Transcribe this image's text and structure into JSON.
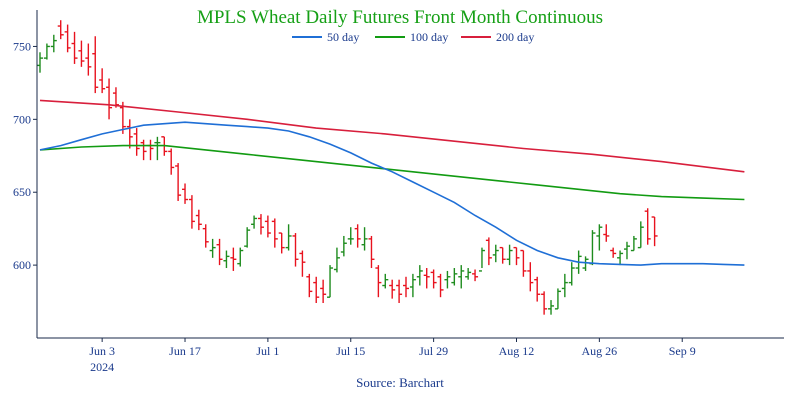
{
  "chart_data": {
    "type": "line",
    "title": "MPLS Wheat Daily Futures Front Month Continuous",
    "source": "Source: Barchart",
    "colors": {
      "title": "#16a016",
      "axis": "#1a2a4a",
      "tick_text": "#1a3a8c",
      "up": "#1e8c1e",
      "down": "#e8121e",
      "ma50": "#1f6fd6",
      "ma100": "#129b12",
      "ma200": "#d81f3c"
    },
    "ylim": [
      550,
      775
    ],
    "y_ticks": [
      {
        "value": 600,
        "label": "600"
      },
      {
        "value": 650,
        "label": "650"
      },
      {
        "value": 700,
        "label": "700"
      },
      {
        "value": 750,
        "label": "750"
      }
    ],
    "x_range": [
      0,
      106
    ],
    "x_ticks": [
      {
        "x": 9,
        "label": "Jun 3",
        "sublabel": "2024"
      },
      {
        "x": 21,
        "label": "Jun 17",
        "sublabel": ""
      },
      {
        "x": 33,
        "label": "Jul 1",
        "sublabel": ""
      },
      {
        "x": 45,
        "label": "Jul 15",
        "sublabel": ""
      },
      {
        "x": 57,
        "label": "Jul 29",
        "sublabel": ""
      },
      {
        "x": 69,
        "label": "Aug 12",
        "sublabel": ""
      },
      {
        "x": 81,
        "label": "Aug 26",
        "sublabel": ""
      },
      {
        "x": 93,
        "label": "Sep 9",
        "sublabel": ""
      }
    ],
    "legend": [
      {
        "name": "50 day",
        "key": "ma50"
      },
      {
        "name": "100 day",
        "key": "ma100"
      },
      {
        "name": "200 day",
        "key": "ma200"
      }
    ],
    "ohlc": [
      [
        737,
        746,
        732,
        742
      ],
      [
        742,
        752,
        741,
        750
      ],
      [
        750,
        758,
        746,
        754
      ],
      [
        764,
        768,
        755,
        758
      ],
      [
        760,
        765,
        746,
        749
      ],
      [
        752,
        760,
        738,
        742
      ],
      [
        747,
        754,
        736,
        740
      ],
      [
        742,
        752,
        730,
        736
      ],
      [
        745,
        757,
        718,
        722
      ],
      [
        727,
        735,
        718,
        721
      ],
      [
        722,
        728,
        700,
        708
      ],
      [
        718,
        722,
        708,
        710
      ],
      [
        708,
        712,
        690,
        695
      ],
      [
        695,
        700,
        680,
        688
      ],
      [
        690,
        694,
        675,
        680
      ],
      [
        684,
        686,
        672,
        678
      ],
      [
        682,
        686,
        672,
        680
      ],
      [
        684,
        688,
        672,
        684
      ],
      [
        688,
        688,
        675,
        678
      ],
      [
        678,
        680,
        662,
        667
      ],
      [
        668,
        670,
        644,
        648
      ],
      [
        652,
        656,
        642,
        645
      ],
      [
        645,
        648,
        625,
        630
      ],
      [
        634,
        638,
        624,
        628
      ],
      [
        625,
        628,
        612,
        616
      ],
      [
        610,
        618,
        605,
        612
      ],
      [
        614,
        618,
        600,
        604
      ],
      [
        603,
        610,
        598,
        606
      ],
      [
        605,
        612,
        596,
        604
      ],
      [
        601,
        612,
        599,
        610
      ],
      [
        613,
        626,
        612,
        624
      ],
      [
        628,
        634,
        625,
        632
      ],
      [
        632,
        635,
        621,
        626
      ],
      [
        630,
        634,
        619,
        622
      ],
      [
        630,
        632,
        612,
        618
      ],
      [
        622,
        622,
        608,
        612
      ],
      [
        612,
        628,
        610,
        620
      ],
      [
        620,
        622,
        599,
        604
      ],
      [
        608,
        610,
        592,
        602
      ],
      [
        592,
        594,
        578,
        582
      ],
      [
        588,
        592,
        574,
        578
      ],
      [
        584,
        590,
        574,
        580
      ],
      [
        578,
        600,
        578,
        598
      ],
      [
        597,
        612,
        595,
        605
      ],
      [
        609,
        620,
        606,
        615
      ],
      [
        618,
        626,
        614,
        618
      ],
      [
        625,
        628,
        612,
        618
      ],
      [
        614,
        626,
        610,
        618
      ],
      [
        618,
        620,
        598,
        604
      ],
      [
        598,
        600,
        578,
        588
      ],
      [
        586,
        594,
        584,
        590
      ],
      [
        586,
        590,
        577,
        583
      ],
      [
        586,
        590,
        574,
        580
      ],
      [
        586,
        592,
        578,
        584
      ],
      [
        585,
        594,
        578,
        590
      ],
      [
        592,
        600,
        586,
        596
      ],
      [
        593,
        598,
        584,
        592
      ],
      [
        595,
        597,
        584,
        588
      ],
      [
        592,
        594,
        578,
        583
      ],
      [
        590,
        596,
        584,
        592
      ],
      [
        588,
        598,
        586,
        594
      ],
      [
        592,
        600,
        584,
        596
      ],
      [
        592,
        598,
        590,
        595
      ],
      [
        594,
        597,
        589,
        592
      ],
      [
        596,
        612,
        598,
        610
      ],
      [
        617,
        619,
        600,
        605
      ],
      [
        607,
        614,
        602,
        610
      ],
      [
        612,
        612,
        601,
        604
      ],
      [
        604,
        614,
        600,
        610
      ],
      [
        612,
        612,
        600,
        605
      ],
      [
        610,
        610,
        592,
        596
      ],
      [
        596,
        602,
        582,
        588
      ],
      [
        590,
        592,
        575,
        580
      ],
      [
        580,
        582,
        566,
        570
      ],
      [
        570,
        576,
        566,
        572
      ],
      [
        570,
        584,
        570,
        582
      ],
      [
        584,
        594,
        578,
        588
      ],
      [
        588,
        602,
        586,
        598
      ],
      [
        598,
        610,
        594,
        606
      ],
      [
        598,
        606,
        596,
        604
      ],
      [
        601,
        624,
        600,
        622
      ],
      [
        620,
        628,
        610,
        626
      ],
      [
        621,
        628,
        616,
        620
      ],
      [
        610,
        612,
        605,
        608
      ],
      [
        605,
        610,
        600,
        608
      ],
      [
        611,
        616,
        604,
        613
      ],
      [
        610,
        620,
        610,
        618
      ],
      [
        612,
        630,
        612,
        626
      ],
      [
        637,
        639,
        614,
        618
      ],
      [
        633,
        633,
        613,
        620
      ]
    ],
    "ma50": [
      [
        0,
        679
      ],
      [
        3,
        682
      ],
      [
        6,
        686
      ],
      [
        9,
        690
      ],
      [
        12,
        693
      ],
      [
        15,
        696
      ],
      [
        18,
        697
      ],
      [
        21,
        698
      ],
      [
        24,
        697
      ],
      [
        27,
        696
      ],
      [
        30,
        695
      ],
      [
        33,
        694
      ],
      [
        36,
        692
      ],
      [
        39,
        688
      ],
      [
        42,
        683
      ],
      [
        45,
        677
      ],
      [
        48,
        670
      ],
      [
        51,
        664
      ],
      [
        54,
        657
      ],
      [
        57,
        650
      ],
      [
        60,
        643
      ],
      [
        63,
        634
      ],
      [
        66,
        626
      ],
      [
        69,
        617
      ],
      [
        72,
        610
      ],
      [
        75,
        605
      ],
      [
        78,
        602
      ],
      [
        81,
        601
      ],
      [
        84,
        600.5
      ],
      [
        87,
        600
      ],
      [
        90,
        601
      ],
      [
        93,
        601
      ],
      [
        96,
        601
      ],
      [
        99,
        600.5
      ],
      [
        102,
        600
      ]
    ],
    "ma100": [
      [
        0,
        679
      ],
      [
        6,
        681
      ],
      [
        12,
        682
      ],
      [
        18,
        682
      ],
      [
        24,
        679
      ],
      [
        30,
        676
      ],
      [
        36,
        673
      ],
      [
        42,
        670
      ],
      [
        48,
        667
      ],
      [
        54,
        664
      ],
      [
        60,
        661
      ],
      [
        66,
        658
      ],
      [
        72,
        655
      ],
      [
        78,
        652
      ],
      [
        84,
        649
      ],
      [
        90,
        647
      ],
      [
        96,
        646
      ],
      [
        102,
        645
      ]
    ],
    "ma200": [
      [
        0,
        713
      ],
      [
        10,
        710
      ],
      [
        20,
        705
      ],
      [
        30,
        700
      ],
      [
        40,
        694
      ],
      [
        50,
        690
      ],
      [
        60,
        685
      ],
      [
        70,
        680
      ],
      [
        80,
        676
      ],
      [
        90,
        671
      ],
      [
        102,
        664
      ]
    ]
  }
}
